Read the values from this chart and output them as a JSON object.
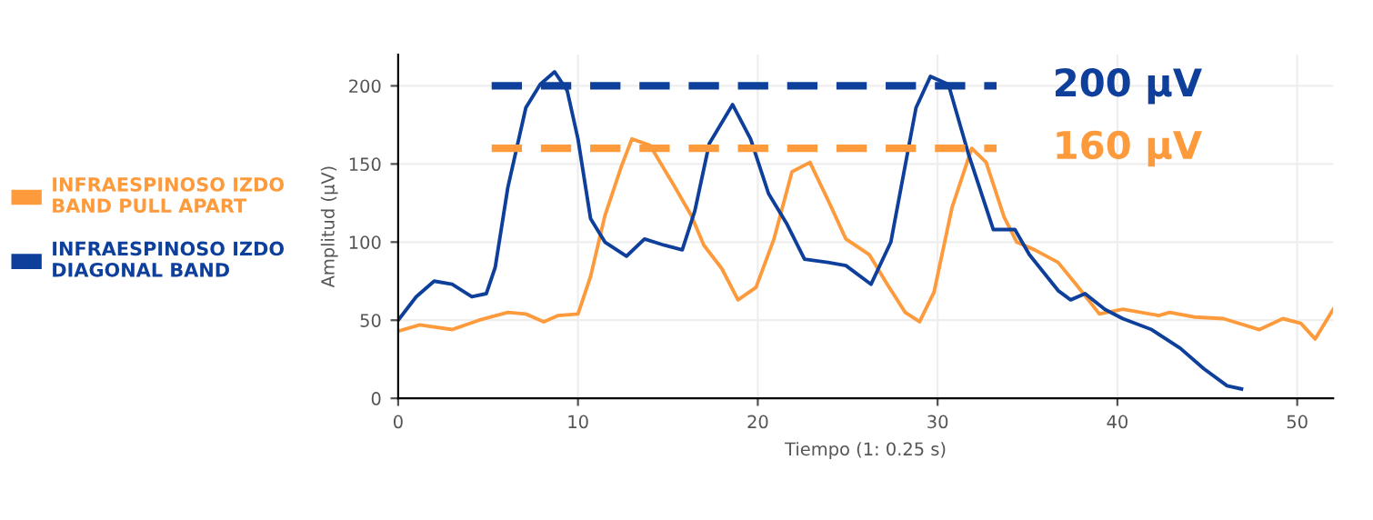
{
  "chart_data": {
    "type": "line",
    "xlabel": "Tiempo (1: 0.25 s)",
    "ylabel": "Amplitud (µV)",
    "xlim": [
      0,
      52
    ],
    "ylim": [
      0,
      220
    ],
    "xticks": [
      0,
      10,
      20,
      30,
      40,
      50
    ],
    "yticks": [
      0,
      50,
      100,
      150,
      200
    ],
    "grid": true,
    "legend": "left",
    "series": [
      {
        "name": "INFRAESPINOSO IZDO\nBAND PULL APART",
        "color": "#fd9a3c",
        "x": [
          0,
          1.2,
          3,
          4.5,
          6.1,
          7.1,
          8.1,
          8.9,
          10,
          10.7,
          11.5,
          12.4,
          13,
          14,
          15.3,
          16.3,
          17,
          18,
          18.9,
          19.9,
          20.9,
          21.9,
          22.9,
          23.9,
          24.9,
          26.2,
          27.2,
          28.2,
          29,
          29.8,
          30.8,
          31.9,
          32.7,
          33.7,
          34.4,
          35.4,
          36.7,
          37.7,
          39,
          40.3,
          42.3,
          42.9,
          44.3,
          45.9,
          47.9,
          49.2,
          50.2,
          51,
          52
        ],
        "values": [
          43,
          47,
          44,
          50,
          55,
          54,
          49,
          53,
          54,
          78,
          117,
          148,
          166,
          162,
          137,
          117,
          98,
          83,
          63,
          71,
          102,
          145,
          151,
          127,
          102,
          92,
          73,
          55,
          49,
          68,
          122,
          160,
          151,
          116,
          100,
          95,
          87,
          73,
          54,
          57,
          53,
          55,
          52,
          51,
          44,
          51,
          48,
          38,
          57
        ]
      },
      {
        "name": "INFRAESPINOSO IZDO\nDIAGONAL BAND",
        "color": "#0d3f9b",
        "x": [
          0,
          1,
          2,
          3,
          4.1,
          4.9,
          5.4,
          6.1,
          7.1,
          7.9,
          8.7,
          9.4,
          10,
          10.7,
          11.5,
          12.7,
          13.7,
          14.8,
          15.8,
          16.5,
          17.3,
          18.6,
          19.6,
          20.6,
          21.6,
          22.6,
          23.9,
          24.9,
          26.3,
          27.4,
          28.8,
          29.6,
          30.6,
          31.7,
          33.1,
          34.3,
          35.1,
          36.7,
          37.4,
          38.2,
          39.3,
          40.3,
          41.9,
          43.5,
          44.8,
          46.1,
          46.9
        ],
        "values": [
          50,
          65,
          75,
          73,
          65,
          67,
          84,
          135,
          186,
          201,
          209,
          197,
          166,
          115,
          100,
          91,
          102,
          98,
          95,
          120,
          163,
          188,
          166,
          131,
          112,
          89,
          87,
          85,
          73,
          100,
          186,
          206,
          201,
          157,
          108,
          108,
          92,
          69,
          63,
          67,
          57,
          51,
          44,
          32,
          19,
          8,
          6
        ]
      }
    ],
    "ref_lines": [
      {
        "axis": "y",
        "value": 200,
        "label": "200 µV",
        "color": "#0d3f9b",
        "line_style": "dashed"
      },
      {
        "axis": "y",
        "value": 160,
        "label": "160 µV",
        "color": "#fd9a3c",
        "line_style": "dashed"
      }
    ]
  }
}
